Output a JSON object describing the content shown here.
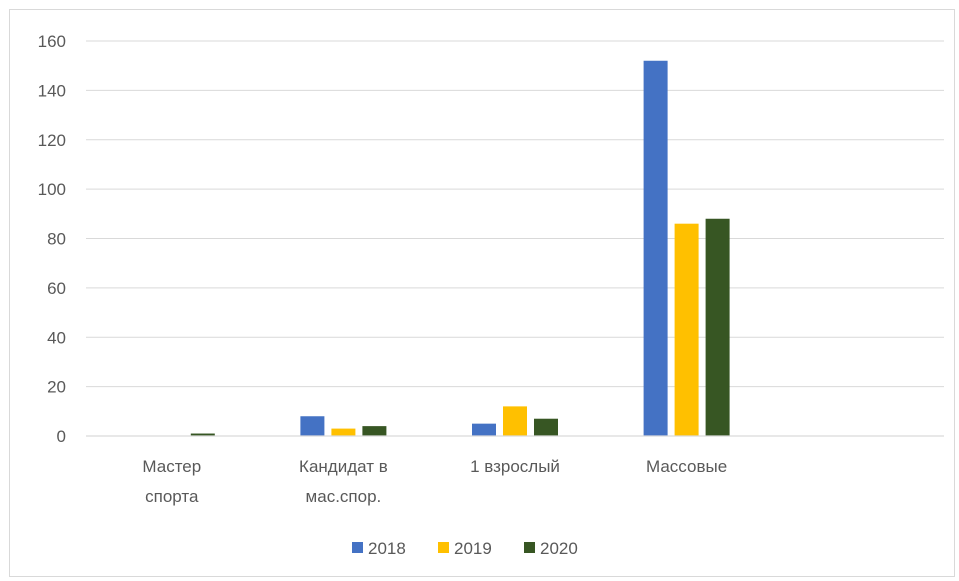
{
  "chart_data": {
    "type": "bar",
    "categories": [
      [
        "Мастер",
        "спорта"
      ],
      [
        "Кандидат в",
        "мас.спор."
      ],
      [
        "1 взрослый"
      ],
      [
        "Массовые"
      ],
      [
        ""
      ]
    ],
    "series": [
      {
        "name": "2018",
        "color": "#4472c4",
        "values": [
          0,
          8,
          5,
          152,
          0
        ]
      },
      {
        "name": "2019",
        "color": "#ffc000",
        "values": [
          0,
          3,
          12,
          86,
          0
        ]
      },
      {
        "name": "2020",
        "color": "#375623",
        "values": [
          1,
          4,
          7,
          88,
          0
        ]
      }
    ],
    "ylim": [
      0,
      160
    ],
    "yticks": [
      0,
      20,
      40,
      60,
      80,
      100,
      120,
      140,
      160
    ],
    "grid": true,
    "legend": "bottom"
  }
}
